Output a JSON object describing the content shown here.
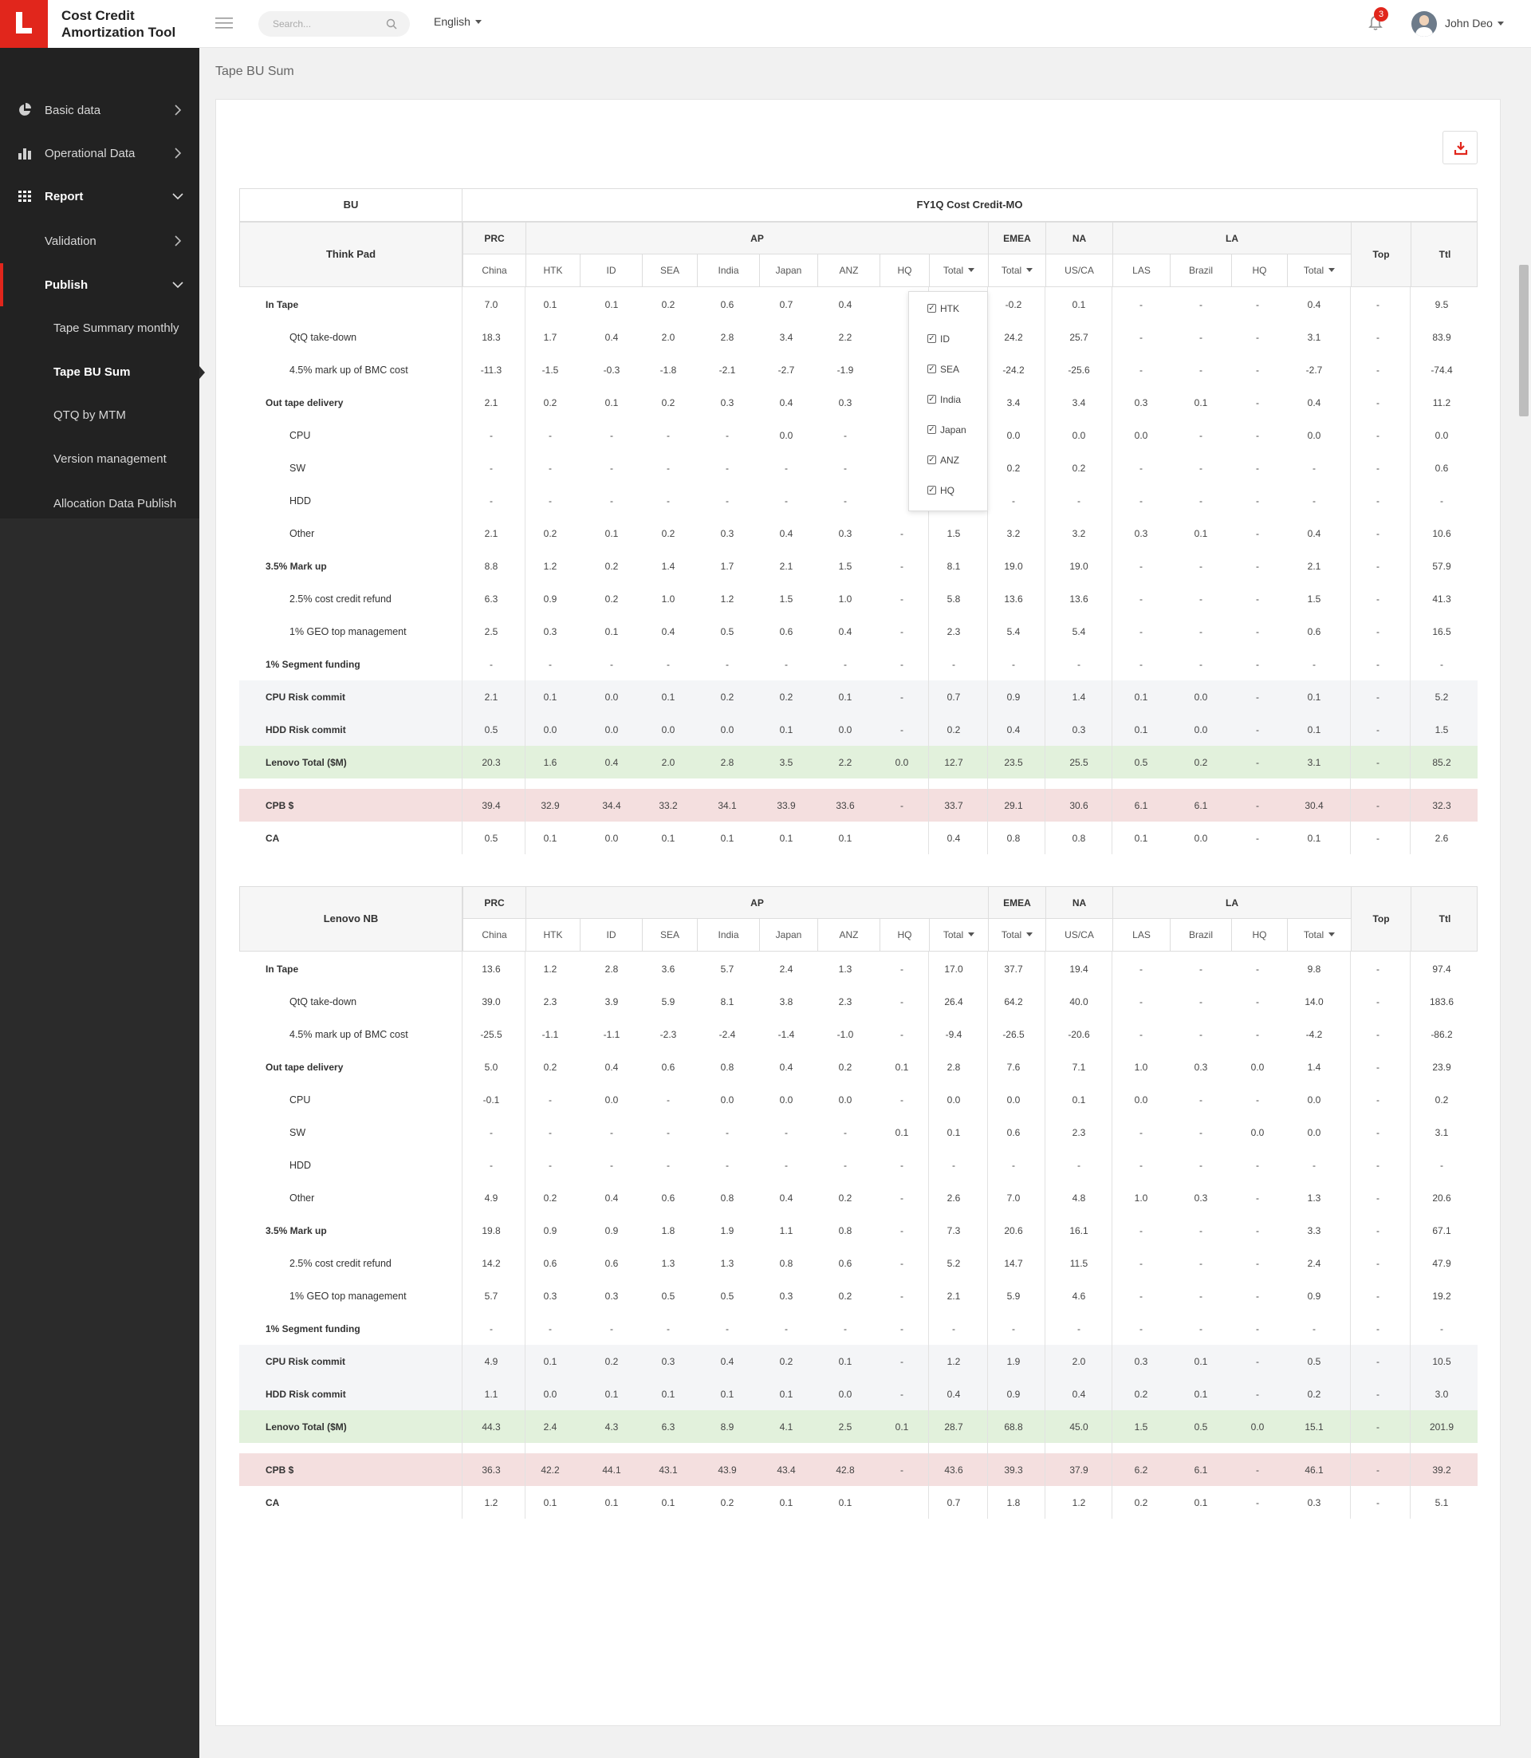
{
  "app": {
    "title_line1": "Cost Credit",
    "title_line2": "Amortization Tool"
  },
  "topbar": {
    "search_placeholder": "Search...",
    "language": "English",
    "notifications": "3",
    "user": "John Deo"
  },
  "sidebar": {
    "items": [
      {
        "label": "Basic data"
      },
      {
        "label": "Operational Data"
      },
      {
        "label": "Report"
      },
      {
        "label": "Validation"
      },
      {
        "label": "Publish"
      },
      {
        "label": "Tape Summary monthly"
      },
      {
        "label": "Tape BU Sum"
      },
      {
        "label": "QTQ by MTM"
      },
      {
        "label": "Version management"
      },
      {
        "label": "Allocation Data Publish"
      }
    ]
  },
  "page": {
    "title": "Tape BU Sum"
  },
  "table": {
    "bu_label": "BU",
    "fy_label": "FY1Q Cost Credit-MO",
    "groups": [
      "PRC",
      "AP",
      "EMEA",
      "NA",
      "LA",
      "Top",
      "Ttl"
    ],
    "columns": [
      "China",
      "HTK",
      "ID",
      "SEA",
      "India",
      "Japan",
      "ANZ",
      "HQ",
      "Total",
      "Total",
      "US/CA",
      "LAS",
      "Brazil",
      "HQ",
      "Total"
    ],
    "filter_options": [
      "HTK",
      "ID",
      "SEA",
      "India",
      "Japan",
      "ANZ",
      "HQ"
    ]
  },
  "sections": [
    {
      "bu": "Think Pad",
      "rows": [
        {
          "label": "In Tape",
          "bold": true,
          "indent": false,
          "bg": "",
          "values": [
            "7.0",
            "0.1",
            "0.1",
            "0.2",
            "0.6",
            "0.7",
            "0.4",
            "",
            "",
            "-0.2",
            "0.1",
            "-",
            "-",
            "-",
            "0.4",
            "-",
            "9.5"
          ]
        },
        {
          "label": "QtQ take-down",
          "bold": false,
          "indent": true,
          "bg": "",
          "values": [
            "18.3",
            "1.7",
            "0.4",
            "2.0",
            "2.8",
            "3.4",
            "2.2",
            "",
            "",
            "24.2",
            "25.7",
            "-",
            "-",
            "-",
            "3.1",
            "-",
            "83.9"
          ]
        },
        {
          "label": "4.5% mark up of BMC cost",
          "bold": false,
          "indent": true,
          "bg": "",
          "values": [
            "-11.3",
            "-1.5",
            "-0.3",
            "-1.8",
            "-2.1",
            "-2.7",
            "-1.9",
            "",
            "",
            "-24.2",
            "-25.6",
            "-",
            "-",
            "-",
            "-2.7",
            "-",
            "-74.4"
          ]
        },
        {
          "label": "Out tape delivery",
          "bold": true,
          "indent": false,
          "bg": "",
          "values": [
            "2.1",
            "0.2",
            "0.1",
            "0.2",
            "0.3",
            "0.4",
            "0.3",
            "",
            "",
            "3.4",
            "3.4",
            "0.3",
            "0.1",
            "-",
            "0.4",
            "-",
            "11.2"
          ]
        },
        {
          "label": "CPU",
          "bold": false,
          "indent": true,
          "bg": "",
          "values": [
            "-",
            "-",
            "-",
            "-",
            "-",
            "0.0",
            "-",
            "",
            "",
            "0.0",
            "0.0",
            "0.0",
            "-",
            "-",
            "0.0",
            "-",
            "0.0"
          ]
        },
        {
          "label": "SW",
          "bold": false,
          "indent": true,
          "bg": "",
          "values": [
            "-",
            "-",
            "-",
            "-",
            "-",
            "-",
            "-",
            "",
            "",
            "0.2",
            "0.2",
            "-",
            "-",
            "-",
            "-",
            "-",
            "0.6"
          ]
        },
        {
          "label": "HDD",
          "bold": false,
          "indent": true,
          "bg": "",
          "values": [
            "-",
            "-",
            "-",
            "-",
            "-",
            "-",
            "-",
            "",
            "",
            "-",
            "-",
            "-",
            "-",
            "-",
            "-",
            "-",
            "-"
          ]
        },
        {
          "label": "Other",
          "bold": false,
          "indent": true,
          "bg": "",
          "values": [
            "2.1",
            "0.2",
            "0.1",
            "0.2",
            "0.3",
            "0.4",
            "0.3",
            "-",
            "1.5",
            "3.2",
            "3.2",
            "0.3",
            "0.1",
            "-",
            "0.4",
            "-",
            "10.6"
          ]
        },
        {
          "label": "3.5% Mark up",
          "bold": true,
          "indent": false,
          "bg": "",
          "values": [
            "8.8",
            "1.2",
            "0.2",
            "1.4",
            "1.7",
            "2.1",
            "1.5",
            "-",
            "8.1",
            "19.0",
            "19.0",
            "-",
            "-",
            "-",
            "2.1",
            "-",
            "57.9"
          ]
        },
        {
          "label": "2.5% cost credit refund",
          "bold": false,
          "indent": true,
          "bg": "",
          "values": [
            "6.3",
            "0.9",
            "0.2",
            "1.0",
            "1.2",
            "1.5",
            "1.0",
            "-",
            "5.8",
            "13.6",
            "13.6",
            "-",
            "-",
            "-",
            "1.5",
            "-",
            "41.3"
          ]
        },
        {
          "label": "1% GEO top management",
          "bold": false,
          "indent": true,
          "bg": "",
          "values": [
            "2.5",
            "0.3",
            "0.1",
            "0.4",
            "0.5",
            "0.6",
            "0.4",
            "-",
            "2.3",
            "5.4",
            "5.4",
            "-",
            "-",
            "-",
            "0.6",
            "-",
            "16.5"
          ]
        },
        {
          "label": "1% Segment funding",
          "bold": true,
          "indent": false,
          "bg": "",
          "values": [
            "-",
            "-",
            "-",
            "-",
            "-",
            "-",
            "-",
            "-",
            "-",
            "-",
            "-",
            "-",
            "-",
            "-",
            "-",
            "-",
            "-"
          ]
        },
        {
          "label": "CPU Risk commit",
          "bold": true,
          "indent": false,
          "bg": "#f4f5f7",
          "values": [
            "2.1",
            "0.1",
            "0.0",
            "0.1",
            "0.2",
            "0.2",
            "0.1",
            "-",
            "0.7",
            "0.9",
            "1.4",
            "0.1",
            "0.0",
            "-",
            "0.1",
            "-",
            "5.2"
          ]
        },
        {
          "label": "HDD Risk commit",
          "bold": true,
          "indent": false,
          "bg": "#f4f5f7",
          "values": [
            "0.5",
            "0.0",
            "0.0",
            "0.0",
            "0.0",
            "0.1",
            "0.0",
            "-",
            "0.2",
            "0.4",
            "0.3",
            "0.1",
            "0.0",
            "-",
            "0.1",
            "-",
            "1.5"
          ]
        },
        {
          "label": "Lenovo Total  ($M)",
          "bold": true,
          "indent": false,
          "bg": "#e2f1dc",
          "values": [
            "20.3",
            "1.6",
            "0.4",
            "2.0",
            "2.8",
            "3.5",
            "2.2",
            "0.0",
            "12.7",
            "23.5",
            "25.5",
            "0.5",
            "0.2",
            "-",
            "3.1",
            "-",
            "85.2"
          ]
        },
        {
          "label": "CPB $",
          "bold": true,
          "indent": false,
          "bg": "#f4dfdf",
          "values": [
            "39.4",
            "32.9",
            "34.4",
            "33.2",
            "34.1",
            "33.9",
            "33.6",
            "-",
            "33.7",
            "29.1",
            "30.6",
            "6.1",
            "6.1",
            "-",
            "30.4",
            "-",
            "32.3"
          ]
        },
        {
          "label": "CA",
          "bold": true,
          "indent": false,
          "bg": "",
          "values": [
            "0.5",
            "0.1",
            "0.0",
            "0.1",
            "0.1",
            "0.1",
            "0.1",
            "",
            "0.4",
            "0.8",
            "0.8",
            "0.1",
            "0.0",
            "-",
            "0.1",
            "-",
            "2.6"
          ]
        }
      ]
    },
    {
      "bu": "Lenovo NB",
      "rows": [
        {
          "label": "In Tape",
          "bold": true,
          "indent": false,
          "bg": "",
          "values": [
            "13.6",
            "1.2",
            "2.8",
            "3.6",
            "5.7",
            "2.4",
            "1.3",
            "-",
            "17.0",
            "37.7",
            "19.4",
            "-",
            "-",
            "-",
            "9.8",
            "-",
            "97.4"
          ]
        },
        {
          "label": "QtQ take-down",
          "bold": false,
          "indent": true,
          "bg": "",
          "values": [
            "39.0",
            "2.3",
            "3.9",
            "5.9",
            "8.1",
            "3.8",
            "2.3",
            "-",
            "26.4",
            "64.2",
            "40.0",
            "-",
            "-",
            "-",
            "14.0",
            "-",
            "183.6"
          ]
        },
        {
          "label": "4.5% mark up of BMC cost",
          "bold": false,
          "indent": true,
          "bg": "",
          "values": [
            "-25.5",
            "-1.1",
            "-1.1",
            "-2.3",
            "-2.4",
            "-1.4",
            "-1.0",
            "-",
            "-9.4",
            "-26.5",
            "-20.6",
            "-",
            "-",
            "-",
            "-4.2",
            "-",
            "-86.2"
          ]
        },
        {
          "label": "Out tape delivery",
          "bold": true,
          "indent": false,
          "bg": "",
          "values": [
            "5.0",
            "0.2",
            "0.4",
            "0.6",
            "0.8",
            "0.4",
            "0.2",
            "0.1",
            "2.8",
            "7.6",
            "7.1",
            "1.0",
            "0.3",
            "0.0",
            "1.4",
            "-",
            "23.9"
          ]
        },
        {
          "label": "CPU",
          "bold": false,
          "indent": true,
          "bg": "",
          "values": [
            "-0.1",
            "-",
            "0.0",
            "-",
            "0.0",
            "0.0",
            "0.0",
            "-",
            "0.0",
            "0.0",
            "0.1",
            "0.0",
            "-",
            "-",
            "0.0",
            "-",
            "0.2"
          ]
        },
        {
          "label": "SW",
          "bold": false,
          "indent": true,
          "bg": "",
          "values": [
            "-",
            "-",
            "-",
            "-",
            "-",
            "-",
            "-",
            "0.1",
            "0.1",
            "0.6",
            "2.3",
            "-",
            "-",
            "0.0",
            "0.0",
            "-",
            "3.1"
          ]
        },
        {
          "label": "HDD",
          "bold": false,
          "indent": true,
          "bg": "",
          "values": [
            "-",
            "-",
            "-",
            "-",
            "-",
            "-",
            "-",
            "-",
            "-",
            "-",
            "-",
            "-",
            "-",
            "-",
            "-",
            "-",
            "-"
          ]
        },
        {
          "label": "Other",
          "bold": false,
          "indent": true,
          "bg": "",
          "values": [
            "4.9",
            "0.2",
            "0.4",
            "0.6",
            "0.8",
            "0.4",
            "0.2",
            "-",
            "2.6",
            "7.0",
            "4.8",
            "1.0",
            "0.3",
            "-",
            "1.3",
            "-",
            "20.6"
          ]
        },
        {
          "label": "3.5% Mark up",
          "bold": true,
          "indent": false,
          "bg": "",
          "values": [
            "19.8",
            "0.9",
            "0.9",
            "1.8",
            "1.9",
            "1.1",
            "0.8",
            "-",
            "7.3",
            "20.6",
            "16.1",
            "-",
            "-",
            "-",
            "3.3",
            "-",
            "67.1"
          ]
        },
        {
          "label": "2.5% cost credit refund",
          "bold": false,
          "indent": true,
          "bg": "",
          "values": [
            "14.2",
            "0.6",
            "0.6",
            "1.3",
            "1.3",
            "0.8",
            "0.6",
            "-",
            "5.2",
            "14.7",
            "11.5",
            "-",
            "-",
            "-",
            "2.4",
            "-",
            "47.9"
          ]
        },
        {
          "label": "1% GEO top management",
          "bold": false,
          "indent": true,
          "bg": "",
          "values": [
            "5.7",
            "0.3",
            "0.3",
            "0.5",
            "0.5",
            "0.3",
            "0.2",
            "-",
            "2.1",
            "5.9",
            "4.6",
            "-",
            "-",
            "-",
            "0.9",
            "-",
            "19.2"
          ]
        },
        {
          "label": "1% Segment funding",
          "bold": true,
          "indent": false,
          "bg": "",
          "values": [
            "-",
            "-",
            "-",
            "-",
            "-",
            "-",
            "-",
            "-",
            "-",
            "-",
            "-",
            "-",
            "-",
            "-",
            "-",
            "-",
            "-"
          ]
        },
        {
          "label": "CPU Risk commit",
          "bold": true,
          "indent": false,
          "bg": "#f4f5f7",
          "values": [
            "4.9",
            "0.1",
            "0.2",
            "0.3",
            "0.4",
            "0.2",
            "0.1",
            "-",
            "1.2",
            "1.9",
            "2.0",
            "0.3",
            "0.1",
            "-",
            "0.5",
            "-",
            "10.5"
          ]
        },
        {
          "label": "HDD Risk commit",
          "bold": true,
          "indent": false,
          "bg": "#f4f5f7",
          "values": [
            "1.1",
            "0.0",
            "0.1",
            "0.1",
            "0.1",
            "0.1",
            "0.0",
            "-",
            "0.4",
            "0.9",
            "0.4",
            "0.2",
            "0.1",
            "-",
            "0.2",
            "-",
            "3.0"
          ]
        },
        {
          "label": "Lenovo Total  ($M)",
          "bold": true,
          "indent": false,
          "bg": "#e2f1dc",
          "values": [
            "44.3",
            "2.4",
            "4.3",
            "6.3",
            "8.9",
            "4.1",
            "2.5",
            "0.1",
            "28.7",
            "68.8",
            "45.0",
            "1.5",
            "0.5",
            "0.0",
            "15.1",
            "-",
            "201.9"
          ]
        },
        {
          "label": "CPB $",
          "bold": true,
          "indent": false,
          "bg": "#f4dfdf",
          "values": [
            "36.3",
            "42.2",
            "44.1",
            "43.1",
            "43.9",
            "43.4",
            "42.8",
            "-",
            "43.6",
            "39.3",
            "37.9",
            "6.2",
            "6.1",
            "-",
            "46.1",
            "-",
            "39.2"
          ]
        },
        {
          "label": "CA",
          "bold": true,
          "indent": false,
          "bg": "",
          "values": [
            "1.2",
            "0.1",
            "0.1",
            "0.1",
            "0.2",
            "0.1",
            "0.1",
            "",
            "0.7",
            "1.8",
            "1.2",
            "0.2",
            "0.1",
            "-",
            "0.3",
            "-",
            "5.1"
          ]
        }
      ]
    }
  ]
}
